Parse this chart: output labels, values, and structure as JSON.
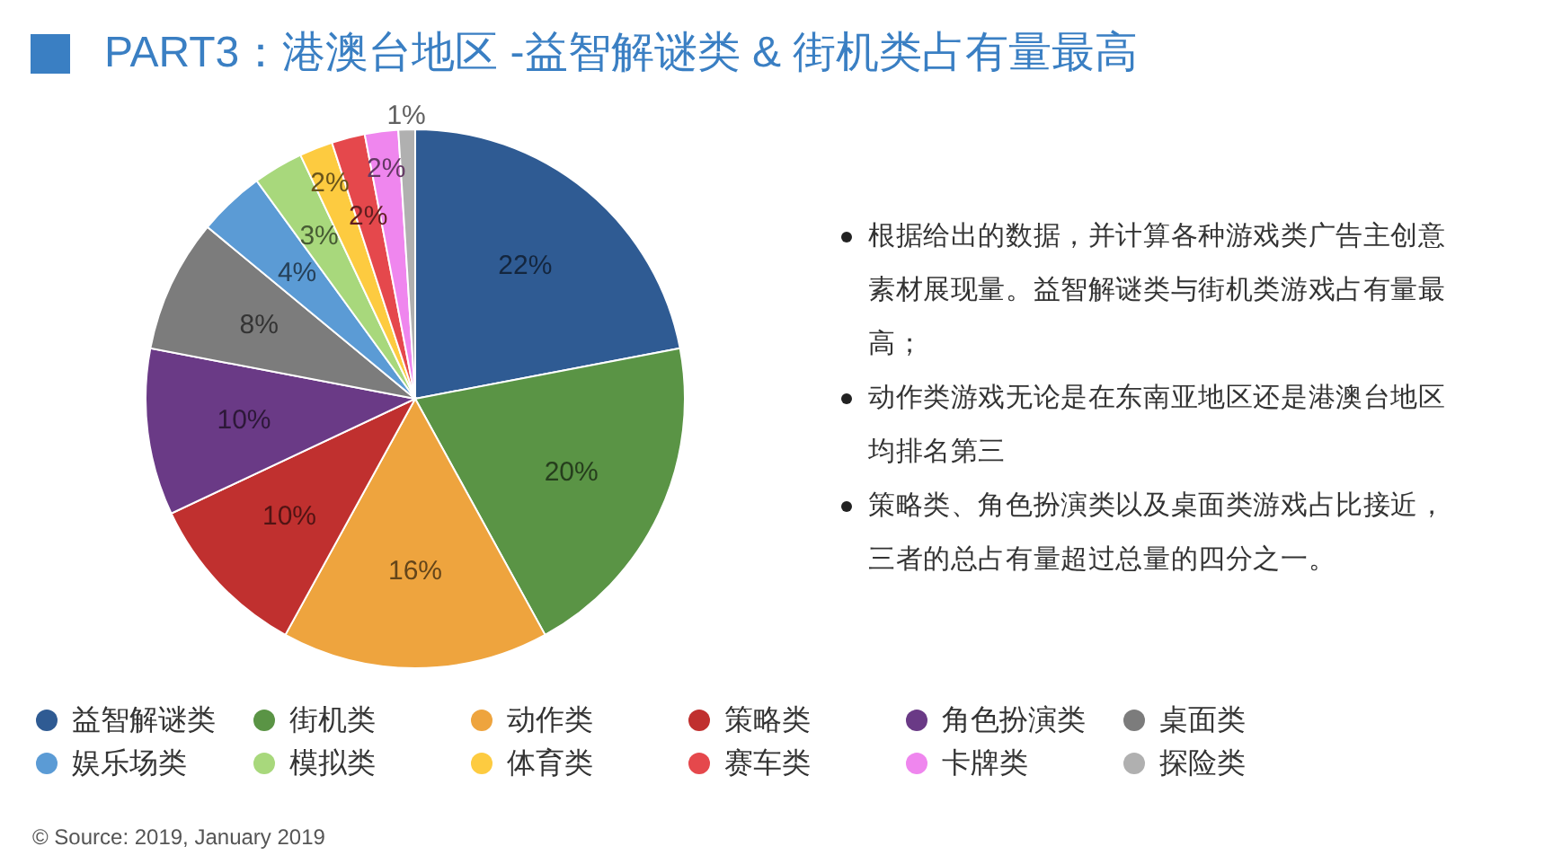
{
  "chart_data": {
    "type": "pie",
    "title": "PART3：港澳台地区 -益智解谜类 & 街机类占有量最高",
    "categories": [
      "益智解谜类",
      "街机类",
      "动作类",
      "策略类",
      "角色扮演类",
      "桌面类",
      "娱乐场类",
      "模拟类",
      "体育类",
      "赛车类",
      "卡牌类",
      "探险类"
    ],
    "values": [
      22,
      20,
      16,
      10,
      10,
      8,
      4,
      3,
      2,
      2,
      2,
      1
    ],
    "colors": [
      "#2f5b93",
      "#5a9445",
      "#eea43e",
      "#c0302f",
      "#6a3a86",
      "#7c7c7c",
      "#5b9bd5",
      "#a8d87c",
      "#fdcb40",
      "#e5484c",
      "#ef86ee",
      "#b0b0b0"
    ],
    "value_labels": [
      "22%",
      "20%",
      "16%",
      "10%",
      "10%",
      "8%",
      "4%",
      "3%",
      "2%",
      "2%",
      "2%",
      "1%"
    ],
    "legend": "bottom",
    "annotations": [
      "根据给出的数据，并计算各种游戏类广告主创意素材展现量。益智解谜类与街机类游戏占有量最高；",
      "动作类游戏无论是在东南亚地区还是港澳台地区均排名第三",
      "策略类、角色扮演类以及桌面类游戏占比接近，三者的总占有量超过总量的四分之一。",
      "© Source: 2019, January 2019"
    ]
  }
}
